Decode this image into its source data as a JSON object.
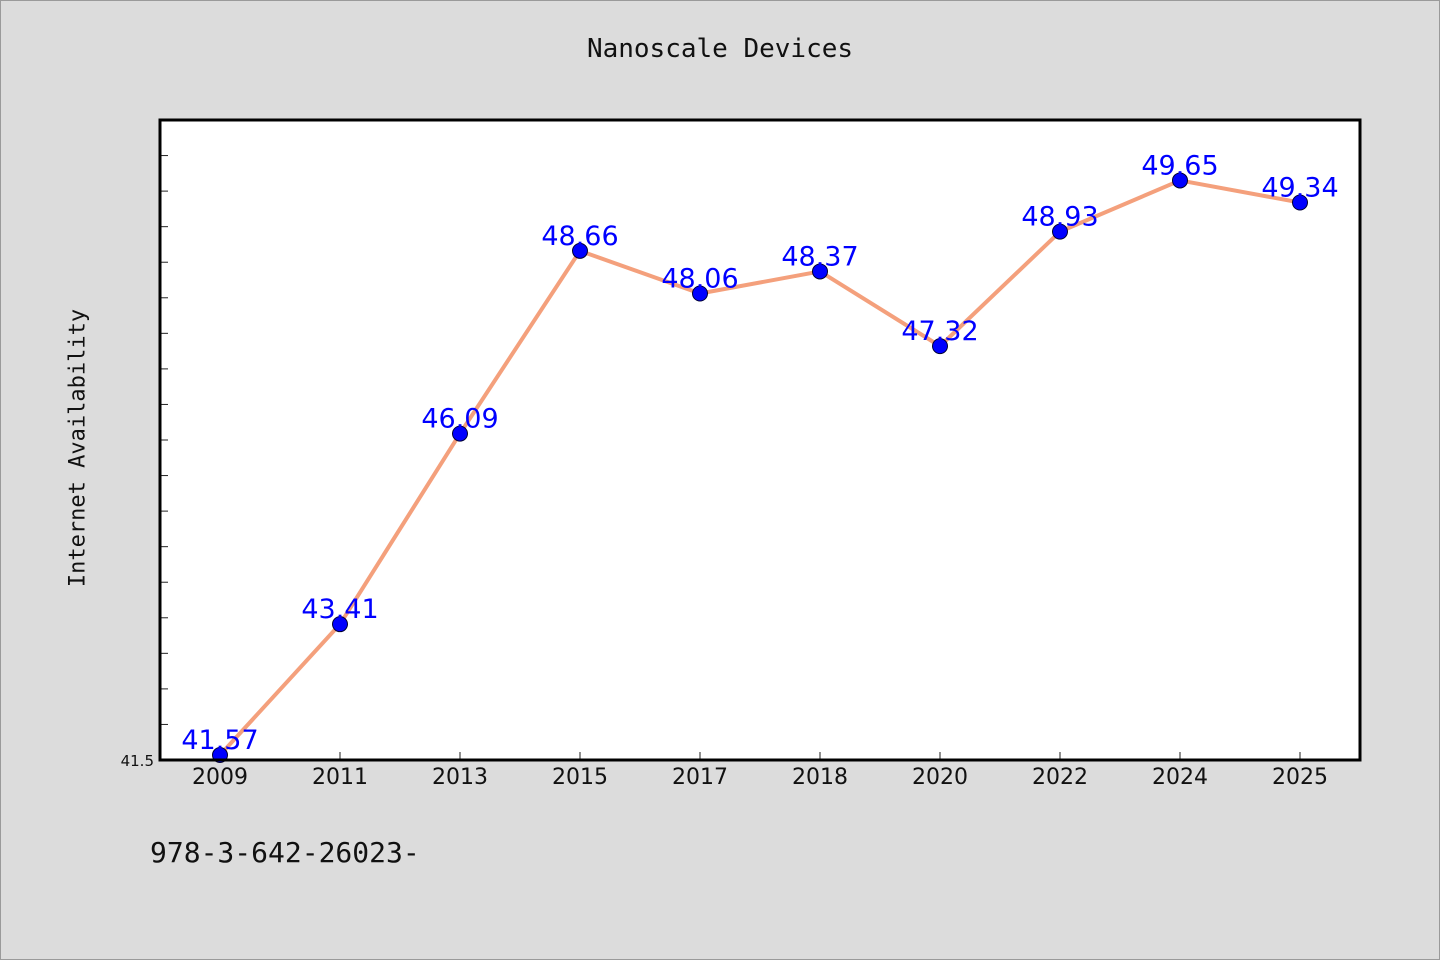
{
  "chart_data": {
    "type": "line",
    "title": "Nanoscale Devices",
    "xlabel": "",
    "ylabel": "Internet Availability",
    "categories": [
      "2009",
      "2011",
      "2013",
      "2015",
      "2017",
      "2018",
      "2020",
      "2022",
      "2024",
      "2025"
    ],
    "series": [
      {
        "values": [
          41.57,
          43.41,
          46.09,
          48.66,
          48.06,
          48.37,
          47.32,
          48.93,
          49.65,
          49.34
        ],
        "line_color": "#f4a07c",
        "marker_color": "#0000ff"
      }
    ],
    "ylim": [
      41.5,
      50.5
    ],
    "ytick_labels": [
      {
        "value": 41.5,
        "label": "41.5"
      }
    ],
    "grid": false,
    "show_data_labels": true,
    "data_label_color": "#0000ff",
    "footnote": "978-3-642-26023-"
  }
}
